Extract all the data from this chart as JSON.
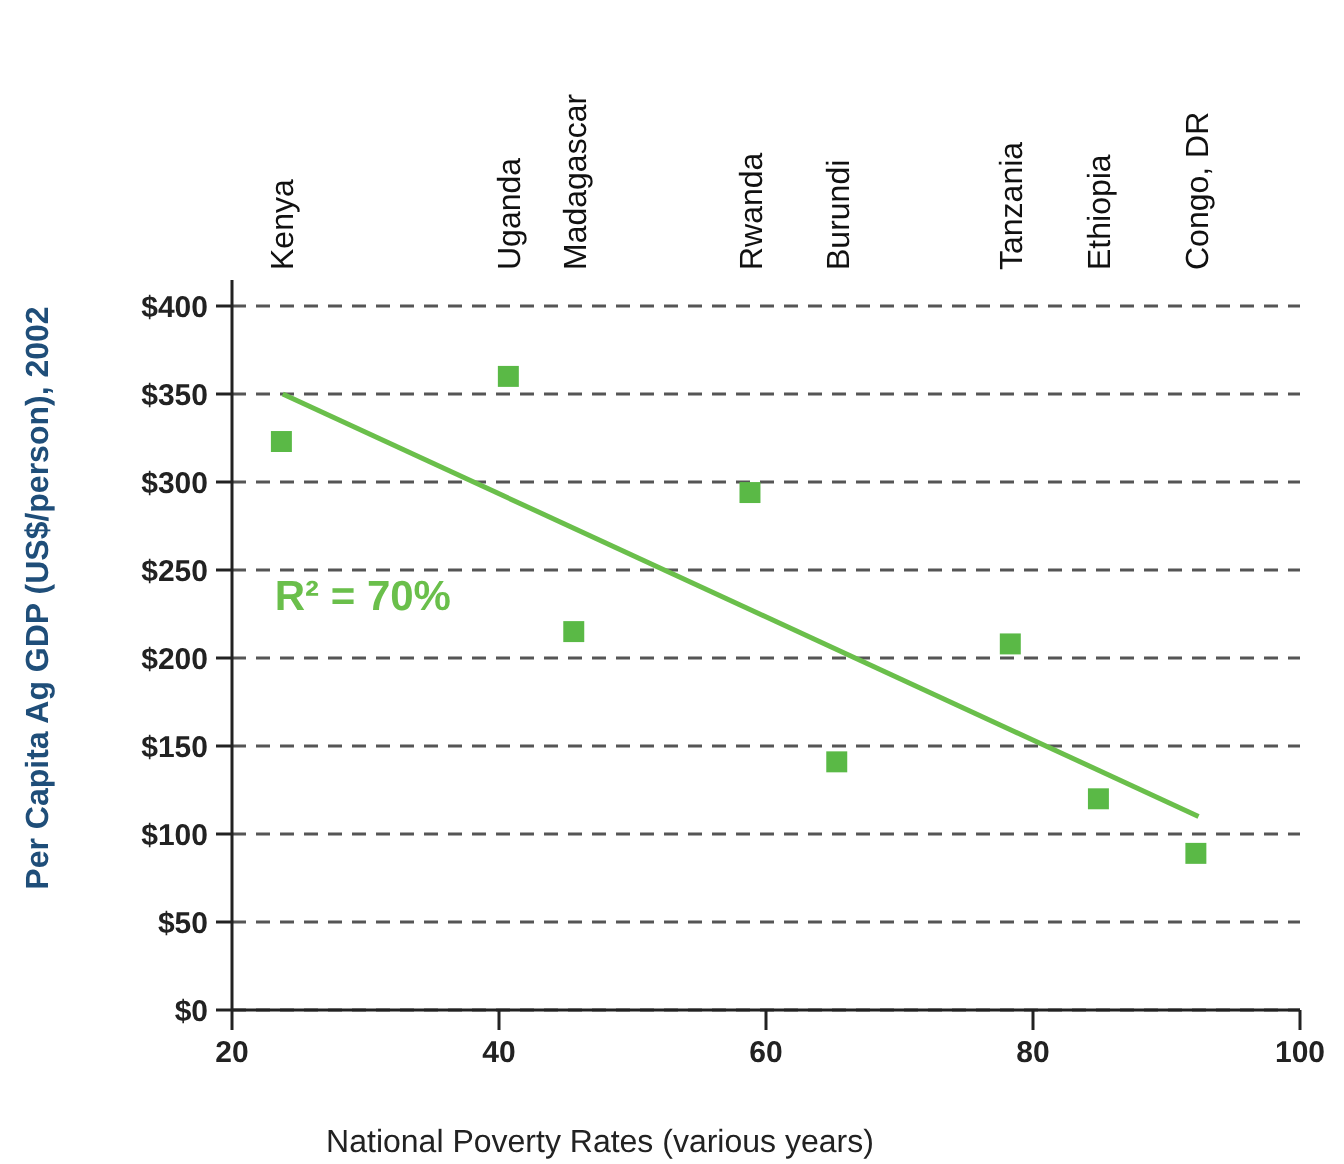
{
  "chart_data": {
    "type": "scatter",
    "xlabel": "National Poverty Rates (various years)",
    "ylabel": "Per Capita Ag GDP (US$/person), 2002",
    "xlim": [
      20,
      100
    ],
    "ylim": [
      0,
      400
    ],
    "xticks": [
      20,
      40,
      60,
      80,
      100
    ],
    "yticks": [
      {
        "value": 0,
        "label": "$0"
      },
      {
        "value": 50,
        "label": "$50"
      },
      {
        "value": 100,
        "label": "$100"
      },
      {
        "value": 150,
        "label": "$150"
      },
      {
        "value": 200,
        "label": "$200"
      },
      {
        "value": 250,
        "label": "$250"
      },
      {
        "value": 300,
        "label": "$300"
      },
      {
        "value": 350,
        "label": "$350"
      },
      {
        "value": 400,
        "label": "$400"
      }
    ],
    "grid": "y",
    "marker": "square",
    "series": [
      {
        "color": "#5ab946",
        "x": [
          23.7,
          40.7,
          45.6,
          58.8,
          65.3,
          78.3,
          84.9,
          92.2
        ],
        "values": [
          323,
          360,
          215,
          294,
          141,
          208,
          120,
          89
        ]
      },
      {
        "type": "line",
        "marker": "none",
        "color": "#6abf4b",
        "x": [
          23.8,
          92.4
        ],
        "values": [
          350,
          110
        ]
      }
    ],
    "annotations": [
      "Kenya",
      "Uganda",
      "Madagascar",
      "Rwanda",
      "Burundi",
      "Tanzania",
      "Ethiopia",
      "Congo, DR",
      "R² = 70%"
    ]
  }
}
